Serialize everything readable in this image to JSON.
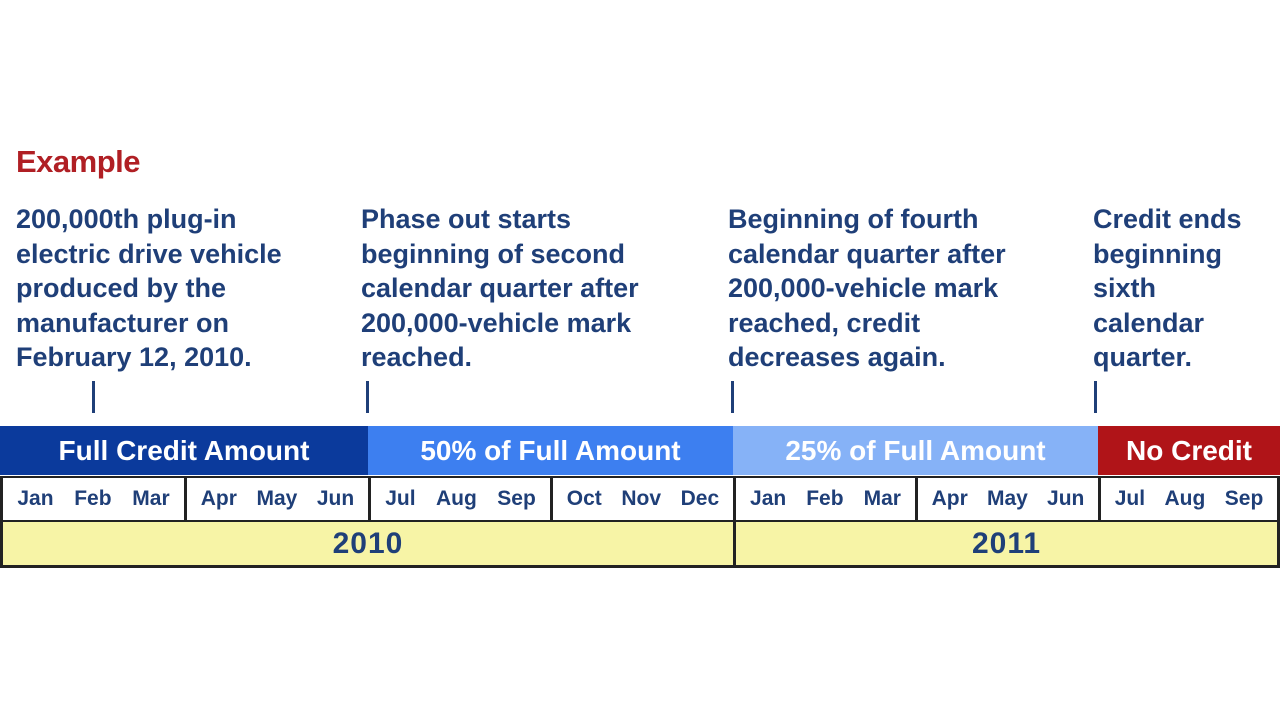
{
  "heading": "Example",
  "notes": [
    {
      "lines": [
        "200,000th plug-in",
        "electric drive vehicle",
        "produced by the",
        "manufacturer on",
        "February 12, 2010."
      ]
    },
    {
      "lines": [
        "Phase out starts",
        "beginning of second",
        "calendar quarter after",
        "200,000-vehicle mark",
        "reached."
      ]
    },
    {
      "lines": [
        "Beginning of fourth",
        "calendar quarter after",
        "200,000-vehicle mark",
        "reached, credit",
        "decreases again."
      ]
    },
    {
      "lines": [
        "Credit ends",
        "beginning",
        "sixth",
        "calendar",
        "quarter."
      ]
    }
  ],
  "phases": [
    {
      "label": "Full Credit Amount",
      "color": "#0b3a9c"
    },
    {
      "label": "50% of Full Amount",
      "color": "#3d7ff0"
    },
    {
      "label": "25% of Full Amount",
      "color": "#86b2f7"
    },
    {
      "label": "No Credit",
      "color": "#b01418"
    }
  ],
  "quarters": [
    [
      "Jan",
      "Feb",
      "Mar"
    ],
    [
      "Apr",
      "May",
      "Jun"
    ],
    [
      "Jul",
      "Aug",
      "Sep"
    ],
    [
      "Oct",
      "Nov",
      "Dec"
    ],
    [
      "Jan",
      "Feb",
      "Mar"
    ],
    [
      "Apr",
      "May",
      "Jun"
    ],
    [
      "Jul",
      "Aug",
      "Sep"
    ]
  ],
  "years": [
    "2010",
    "2011"
  ]
}
